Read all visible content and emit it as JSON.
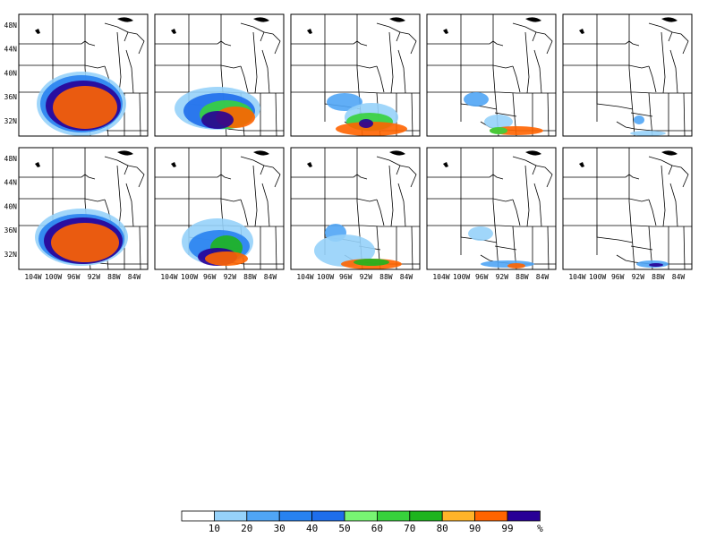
{
  "map": {
    "lat_labels": [
      "48N",
      "44N",
      "40N",
      "36N",
      "32N"
    ],
    "lon_labels": [
      "104W",
      "100W",
      "96W",
      "92W",
      "88W",
      "84W"
    ]
  },
  "colorbar": {
    "colors": [
      "#ffffff",
      "#96d2fa",
      "#50a5f5",
      "#2882f0",
      "#1e6eeb",
      "#78f573",
      "#37d23c",
      "#1eb41e",
      "#ffb429",
      "#ff6400",
      "#280096"
    ],
    "labels": [
      "10",
      "20",
      "30",
      "40",
      "50",
      "60",
      "70",
      "80",
      "90",
      "99",
      "%"
    ]
  }
}
